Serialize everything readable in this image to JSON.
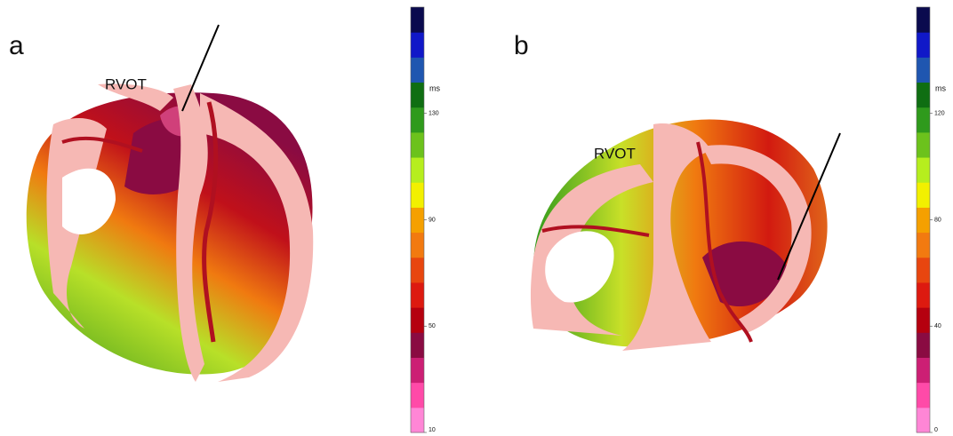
{
  "panels": [
    {
      "label": "a",
      "annotation": "RVOT",
      "colorbar": {
        "unit": "ms",
        "lim": [
          10,
          170
        ],
        "ticks": [
          130,
          90,
          50,
          10
        ],
        "colors": [
          "#ff86d6",
          "#ff4aa8",
          "#cc1f74",
          "#8a0b42",
          "#b5000f",
          "#dd1a10",
          "#e8460f",
          "#f27a10",
          "#f5a000",
          "#f2f000",
          "#b6ee1e",
          "#6cc21c",
          "#2f9a1c",
          "#0f6e12",
          "#1f56b0",
          "#1018c8",
          "#0a0a4e"
        ]
      }
    },
    {
      "label": "b",
      "annotation": "RVOT",
      "colorbar": {
        "unit": "ms",
        "lim": [
          0,
          160
        ],
        "ticks": [
          120,
          80,
          40,
          0
        ],
        "colors": [
          "#ff86d6",
          "#ff4aa8",
          "#cc1f74",
          "#8a0b42",
          "#b5000f",
          "#dd1a10",
          "#e8460f",
          "#f27a10",
          "#f5a000",
          "#f2f000",
          "#b6ee1e",
          "#6cc21c",
          "#2f9a1c",
          "#0f6e12",
          "#1f56b0",
          "#1018c8",
          "#0a0a4e"
        ]
      }
    }
  ]
}
